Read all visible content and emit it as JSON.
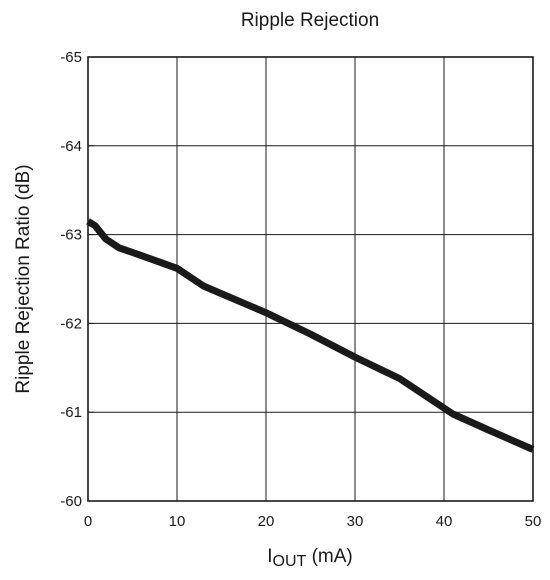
{
  "chart_data": {
    "type": "line",
    "title": "Ripple Rejection",
    "xlabel_main": "I",
    "xlabel_sub": "OUT",
    "xlabel_unit": " (mA)",
    "ylabel": "Ripple Rejection Ratio (dB)",
    "xlim": [
      0,
      50
    ],
    "ylim": [
      -65,
      -60
    ],
    "y_reversed": true,
    "grid": true,
    "legend": "none",
    "x_ticks": [
      0,
      10,
      20,
      30,
      40,
      50
    ],
    "x_tick_labels": [
      "0",
      "10",
      "20",
      "30",
      "40",
      "50"
    ],
    "y_ticks": [
      -65,
      -64,
      -63,
      -62,
      -61,
      -60
    ],
    "y_tick_labels": [
      "-65",
      "-64",
      "-63",
      "-62",
      "-61",
      "-60"
    ],
    "series": [
      {
        "color": "#1a1a1a",
        "x": [
          0,
          0.8,
          2,
          3.5,
          5,
          10,
          13,
          20,
          25,
          30,
          35,
          41,
          45,
          50
        ],
        "y": [
          -63.15,
          -63.1,
          -62.95,
          -62.85,
          -62.8,
          -62.62,
          -62.42,
          -62.12,
          -61.88,
          -61.62,
          -61.38,
          -60.98,
          -60.8,
          -60.58
        ]
      }
    ]
  }
}
